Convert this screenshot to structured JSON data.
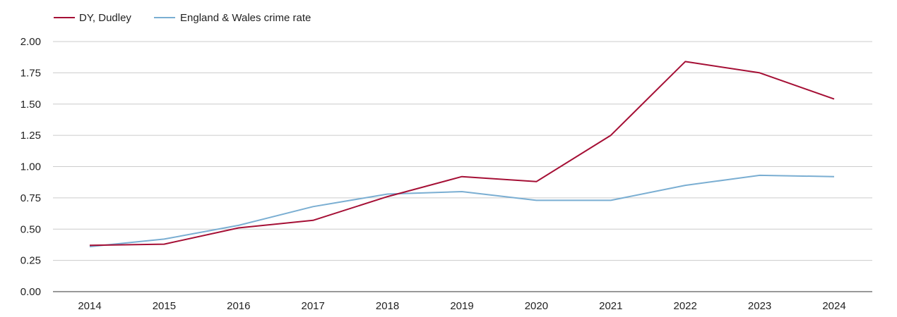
{
  "chart_data": {
    "type": "line",
    "title": "",
    "xlabel": "",
    "ylabel": "",
    "categories": [
      "2014",
      "2015",
      "2016",
      "2017",
      "2018",
      "2019",
      "2020",
      "2021",
      "2022",
      "2023",
      "2024"
    ],
    "yticks": [
      "0.00",
      "0.25",
      "0.50",
      "0.75",
      "1.00",
      "1.25",
      "1.50",
      "1.75",
      "2.00"
    ],
    "ylim": [
      0,
      2
    ],
    "grid": true,
    "legend_position": "top-left",
    "series": [
      {
        "name": "DY, Dudley",
        "color": "#a50f35",
        "values": [
          0.37,
          0.38,
          0.51,
          0.57,
          0.76,
          0.92,
          0.88,
          1.25,
          1.84,
          1.75,
          1.54
        ]
      },
      {
        "name": "England & Wales crime rate",
        "color": "#7aaed2",
        "values": [
          0.36,
          0.42,
          0.53,
          0.68,
          0.78,
          0.8,
          0.73,
          0.73,
          0.85,
          0.93,
          0.92
        ]
      }
    ]
  }
}
